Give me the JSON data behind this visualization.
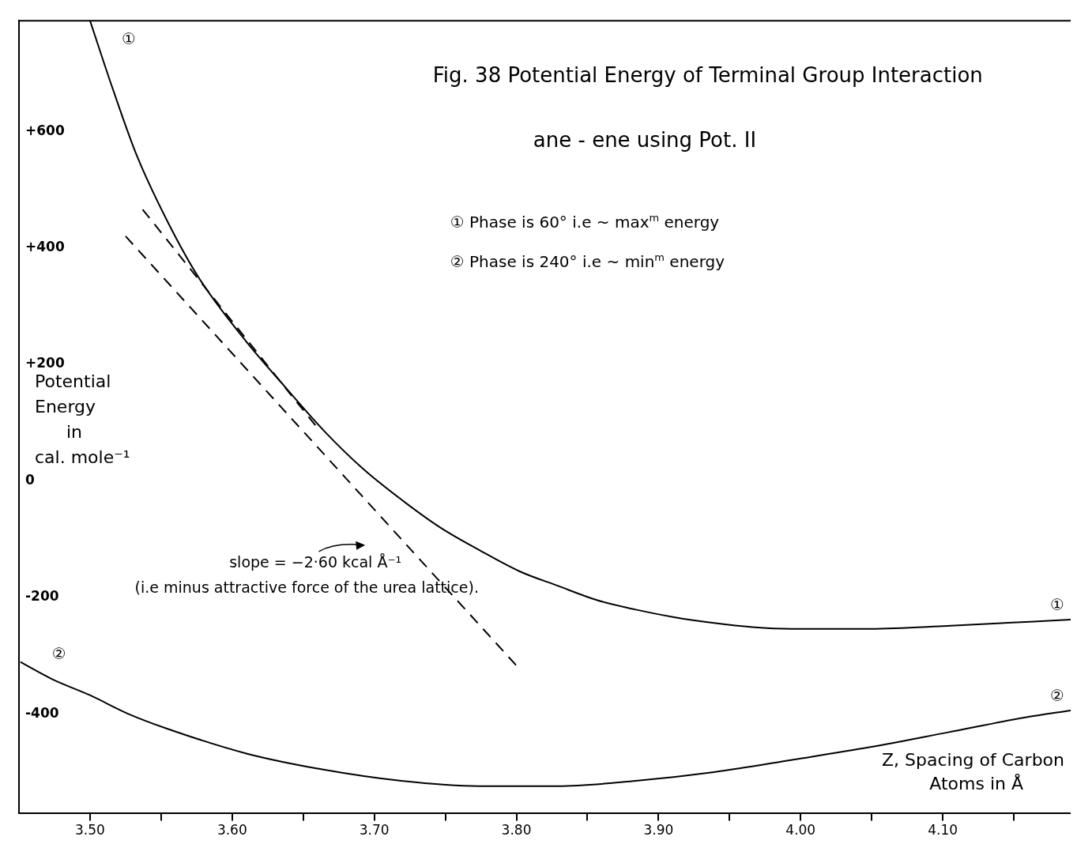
{
  "chart_data": {
    "type": "line",
    "title": "Fig. 38 Potential Energy of Terminal Group Interaction",
    "subtitle": "ane - ene using Pot. II",
    "xlabel": "Z, Spacing of Carbon Atoms in Å",
    "ylabel": "Potential Energy in cal. mole⁻¹",
    "annotations": [
      "① Phase is 60° i.e ~ max$^{m}$ energy",
      "② Phase is 240° i.e ~ min$^{m}$ energy",
      "slope = −2·60 kcal Å⁻¹",
      "(i.e minus attractive force of the urea lattice)."
    ],
    "xlim": [
      3.45,
      4.19
    ],
    "ylim": [
      -570,
      790
    ],
    "xticks": [
      {
        "value": 3.5,
        "label": "3.50"
      },
      {
        "value": 3.55,
        "label": null
      },
      {
        "value": 3.6,
        "label": "3.60"
      },
      {
        "value": 3.65,
        "label": null
      },
      {
        "value": 3.7,
        "label": "3.70"
      },
      {
        "value": 3.75,
        "label": null
      },
      {
        "value": 3.8,
        "label": "3.80"
      },
      {
        "value": 3.85,
        "label": null
      },
      {
        "value": 3.9,
        "label": "3.90"
      },
      {
        "value": 3.95,
        "label": null
      },
      {
        "value": 4.0,
        "label": "4.00"
      },
      {
        "value": 4.05,
        "label": null
      },
      {
        "value": 4.1,
        "label": "4.10"
      },
      {
        "value": 4.15,
        "label": null
      }
    ],
    "yticks": [
      {
        "value": 600,
        "label": "+600"
      },
      {
        "value": 400,
        "label": "+400"
      },
      {
        "value": 200,
        "label": "+200"
      },
      0,
      -200,
      -400
    ],
    "grid": false,
    "marker": "none",
    "line_style": "solid",
    "series": [
      {
        "name": "①",
        "color": "#000000",
        "x": [
          3.5,
          3.516,
          3.533,
          3.555,
          3.577,
          3.61,
          3.637,
          3.665,
          3.692,
          3.719,
          3.747,
          3.774,
          3.802,
          3.829,
          3.857,
          3.884,
          3.911,
          3.939,
          3.966,
          3.994,
          4.049,
          4.103,
          4.19
        ],
        "values": [
          790,
          673,
          558,
          443,
          347,
          239,
          162,
          85,
          21,
          -32,
          -81,
          -119,
          -155,
          -180,
          -205,
          -221,
          -234,
          -244,
          -251,
          -254,
          -254,
          -249,
          -238
        ]
      },
      {
        "name": "②",
        "color": "#000000",
        "x": [
          3.451,
          3.473,
          3.5,
          3.527,
          3.555,
          3.61,
          3.665,
          3.719,
          3.774,
          3.829,
          3.884,
          3.939,
          3.994,
          4.049,
          4.103,
          4.158,
          4.19
        ],
        "values": [
          -311,
          -340,
          -368,
          -400,
          -426,
          -468,
          -496,
          -515,
          -524,
          -524,
          -515,
          -500,
          -479,
          -457,
          -432,
          -406,
          -394
        ]
      },
      {
        "color": "#000000",
        "line_style": "dashed",
        "x": [
          3.537,
          3.662
        ],
        "values": [
          466,
          85
        ]
      },
      {
        "color": "#000000",
        "line_style": "dashed",
        "x": [
          3.525,
          3.8
        ],
        "values": [
          420,
          -317
        ]
      }
    ]
  }
}
